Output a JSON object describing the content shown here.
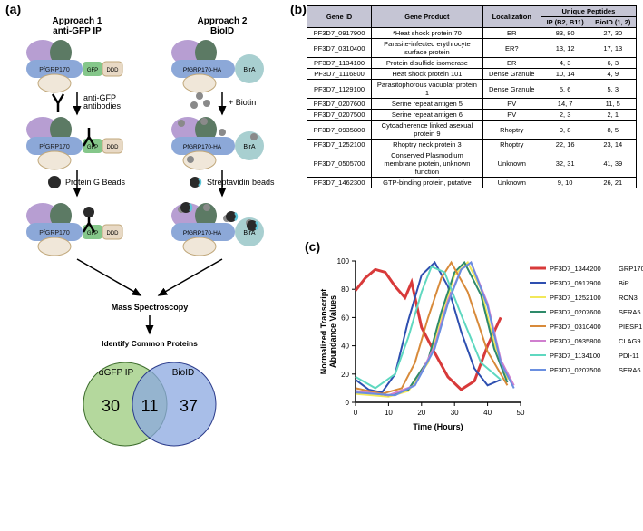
{
  "panelA": {
    "label": "(a)",
    "approach1": {
      "title": "Approach 1\nanti-GFP IP",
      "construct_left": "PfGRP170",
      "construct_mid": "GFP",
      "construct_right": "DDD",
      "step1": "anti-GFP\nantibodies",
      "step2": "Protein G Beads"
    },
    "approach2": {
      "title": "Approach 2\nBioID",
      "construct_left": "PfGRP170-HA",
      "construct_right": "BirA",
      "step1": "+ Biotin",
      "step2": "Streptavidin beads"
    },
    "massSpec": "Mass Spectroscopy",
    "identify": "Identify Common Proteins",
    "venn": {
      "left_label": "αGFP IP",
      "right_label": "BioID",
      "left_n": "30",
      "mid_n": "11",
      "right_n": "37"
    },
    "colors": {
      "purple": "#b79ed2",
      "darkgreen": "#5c7a64",
      "blue": "#8ca8d8",
      "green": "#85c78a",
      "tan": "#e8d9c5",
      "teal": "#a8cfd0",
      "grey": "#8a8a8a",
      "black": "#2a2a2a",
      "cyan": "#5fc6d8",
      "venn_green": "#a7d18c",
      "venn_blue": "#8ba8e0"
    }
  },
  "panelB": {
    "label": "(b)",
    "headers": [
      "Gene ID",
      "Gene Product",
      "Localization",
      "IP (B2, B11)",
      "BioID (1, 2)"
    ],
    "header_group": "Unique Peptides",
    "rows": [
      [
        "PF3D7_0917900",
        "*Heat shock protein 70",
        "ER",
        "83, 80",
        "27, 30"
      ],
      [
        "PF3D7_0310400",
        "Parasite-infected erythrocyte surface protein",
        "ER?",
        "13, 12",
        "17, 13"
      ],
      [
        "PF3D7_1134100",
        "Protein disulfide isomerase",
        "ER",
        "4, 3",
        "6, 3"
      ],
      [
        "PF3D7_1116800",
        "Heat shock protein 101",
        "Dense Granule",
        "10, 14",
        "4, 9"
      ],
      [
        "PF3D7_1129100",
        "Parasitophorous vacuolar protein 1",
        "Dense Granule",
        "5, 6",
        "5, 3"
      ],
      [
        "PF3D7_0207600",
        "Serine repeat antigen 5",
        "PV",
        "14, 7",
        "11, 5"
      ],
      [
        "PF3D7_0207500",
        "Serine repeat antigen 6",
        "PV",
        "2, 3",
        "2, 1"
      ],
      [
        "PF3D7_0935800",
        "Cytoadherence linked asexual protein 9",
        "Rhoptry",
        "9, 8",
        "8, 5"
      ],
      [
        "PF3D7_1252100",
        "Rhoptry neck protein 3",
        "Rhoptry",
        "22, 16",
        "23, 14"
      ],
      [
        "PF3D7_0505700",
        "Conserved Plasmodium membrane protein, unknown function",
        "Unknown",
        "32, 31",
        "41, 39"
      ],
      [
        "PF3D7_1462300",
        "GTP-binding protein, putative",
        "Unknown",
        "9, 10",
        "26, 21"
      ]
    ]
  },
  "panelC": {
    "label": "(c)",
    "xlabel": "Time (Hours)",
    "ylabel": "Normalized Transcript\nAbundance Values",
    "xlim": [
      0,
      50
    ],
    "xtick_step": 10,
    "ylim": [
      0,
      100
    ],
    "ytick_step": 20,
    "series": [
      {
        "id": "PF3D7_1344200",
        "name": "GRP170",
        "color": "#d83a3a",
        "width": 3,
        "data": [
          [
            0,
            79
          ],
          [
            3,
            88
          ],
          [
            6,
            94
          ],
          [
            9,
            92
          ],
          [
            12,
            82
          ],
          [
            15,
            74
          ],
          [
            17,
            85
          ],
          [
            20,
            53
          ],
          [
            24,
            35
          ],
          [
            28,
            18
          ],
          [
            32,
            9
          ],
          [
            36,
            15
          ],
          [
            40,
            40
          ],
          [
            44,
            60
          ]
        ]
      },
      {
        "id": "PF3D7_0917900",
        "name": "BiP",
        "color": "#2e4fb0",
        "width": 2,
        "data": [
          [
            0,
            16
          ],
          [
            4,
            9
          ],
          [
            8,
            7
          ],
          [
            12,
            20
          ],
          [
            16,
            58
          ],
          [
            20,
            90
          ],
          [
            24,
            99
          ],
          [
            28,
            82
          ],
          [
            32,
            50
          ],
          [
            36,
            24
          ],
          [
            40,
            12
          ],
          [
            44,
            16
          ]
        ]
      },
      {
        "id": "PF3D7_1252100",
        "name": "RON3",
        "color": "#f2e85a",
        "width": 2,
        "data": [
          [
            0,
            6
          ],
          [
            10,
            4
          ],
          [
            16,
            8
          ],
          [
            22,
            28
          ],
          [
            26,
            60
          ],
          [
            30,
            90
          ],
          [
            34,
            99
          ],
          [
            38,
            80
          ],
          [
            42,
            42
          ],
          [
            46,
            16
          ]
        ]
      },
      {
        "id": "PF3D7_0207600",
        "name": "SERA5",
        "color": "#2e8a6a",
        "width": 2,
        "data": [
          [
            0,
            8
          ],
          [
            10,
            5
          ],
          [
            16,
            9
          ],
          [
            22,
            30
          ],
          [
            26,
            64
          ],
          [
            30,
            92
          ],
          [
            33,
            99
          ],
          [
            38,
            76
          ],
          [
            42,
            38
          ],
          [
            46,
            14
          ]
        ]
      },
      {
        "id": "PF3D7_0310400",
        "name": "PIESP1",
        "color": "#d88a3a",
        "width": 2,
        "data": [
          [
            0,
            10
          ],
          [
            8,
            6
          ],
          [
            14,
            10
          ],
          [
            18,
            28
          ],
          [
            22,
            60
          ],
          [
            26,
            88
          ],
          [
            29,
            99
          ],
          [
            34,
            78
          ],
          [
            40,
            36
          ],
          [
            46,
            12
          ]
        ]
      },
      {
        "id": "PF3D7_0935800",
        "name": "CLAG9",
        "color": "#d07fcf",
        "width": 2,
        "data": [
          [
            0,
            8
          ],
          [
            10,
            5
          ],
          [
            18,
            12
          ],
          [
            24,
            40
          ],
          [
            28,
            72
          ],
          [
            32,
            94
          ],
          [
            35,
            99
          ],
          [
            40,
            70
          ],
          [
            44,
            30
          ],
          [
            48,
            12
          ]
        ]
      },
      {
        "id": "PF3D7_1134100",
        "name": "PDI-11",
        "color": "#5fd8c0",
        "width": 2,
        "data": [
          [
            0,
            18
          ],
          [
            6,
            10
          ],
          [
            12,
            20
          ],
          [
            16,
            46
          ],
          [
            20,
            78
          ],
          [
            23,
            96
          ],
          [
            27,
            92
          ],
          [
            32,
            62
          ],
          [
            38,
            28
          ],
          [
            44,
            16
          ]
        ]
      },
      {
        "id": "PF3D7_0207500",
        "name": "SERA6",
        "color": "#6a8fe0",
        "width": 2,
        "data": [
          [
            0,
            7
          ],
          [
            12,
            5
          ],
          [
            18,
            12
          ],
          [
            24,
            38
          ],
          [
            28,
            70
          ],
          [
            32,
            94
          ],
          [
            35,
            99
          ],
          [
            40,
            68
          ],
          [
            44,
            28
          ],
          [
            48,
            10
          ]
        ]
      }
    ]
  }
}
